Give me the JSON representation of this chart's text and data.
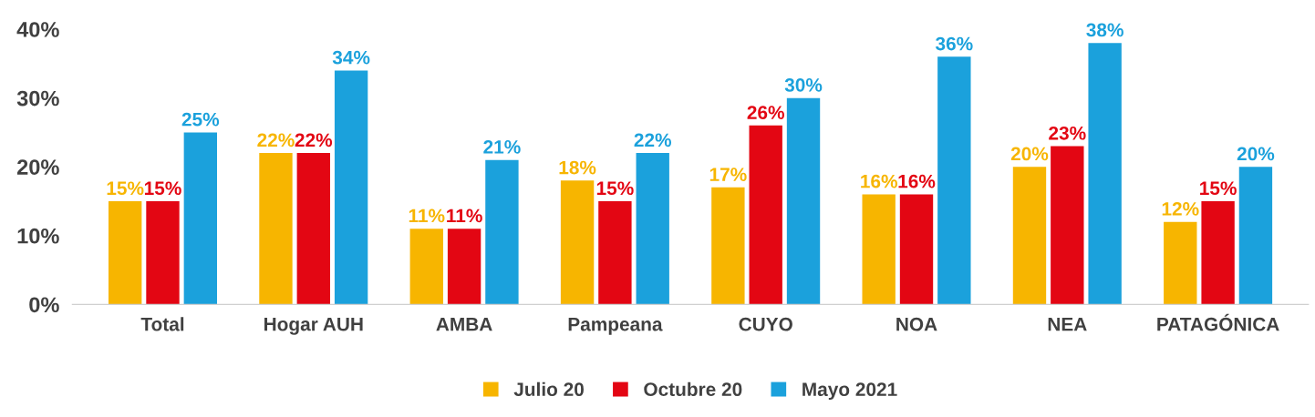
{
  "chart_data": {
    "type": "bar",
    "categories": [
      "Total",
      "Hogar AUH",
      "AMBA",
      "Pampeana",
      "CUYO",
      "NOA",
      "NEA",
      "PATAGÓNICA"
    ],
    "series": [
      {
        "name": "Julio 20",
        "color": "#f7b500",
        "values": [
          15,
          22,
          11,
          18,
          17,
          16,
          20,
          12
        ],
        "value_labels": [
          "15%",
          "22%",
          "11%",
          "18%",
          "17%",
          "16%",
          "20%",
          "12%"
        ]
      },
      {
        "name": "Octubre 20",
        "color": "#e30613",
        "values": [
          15,
          22,
          11,
          15,
          26,
          16,
          23,
          15
        ],
        "value_labels": [
          "15%",
          "22%",
          "11%",
          "15%",
          "26%",
          "16%",
          "23%",
          "15%"
        ]
      },
      {
        "name": "Mayo 2021",
        "color": "#1ba1dc",
        "values": [
          25,
          34,
          21,
          22,
          30,
          36,
          38,
          20
        ],
        "value_labels": [
          "25%",
          "34%",
          "21%",
          "22%",
          "30%",
          "36%",
          "38%",
          "20%"
        ]
      }
    ],
    "ylim": [
      0,
      40
    ],
    "yticks": [
      {
        "value": 0,
        "label": "0%"
      },
      {
        "value": 10,
        "label": "10%"
      },
      {
        "value": 20,
        "label": "20%"
      },
      {
        "value": 30,
        "label": "30%"
      },
      {
        "value": 40,
        "label": "40%"
      }
    ],
    "grid": false,
    "legend": "bottom"
  }
}
